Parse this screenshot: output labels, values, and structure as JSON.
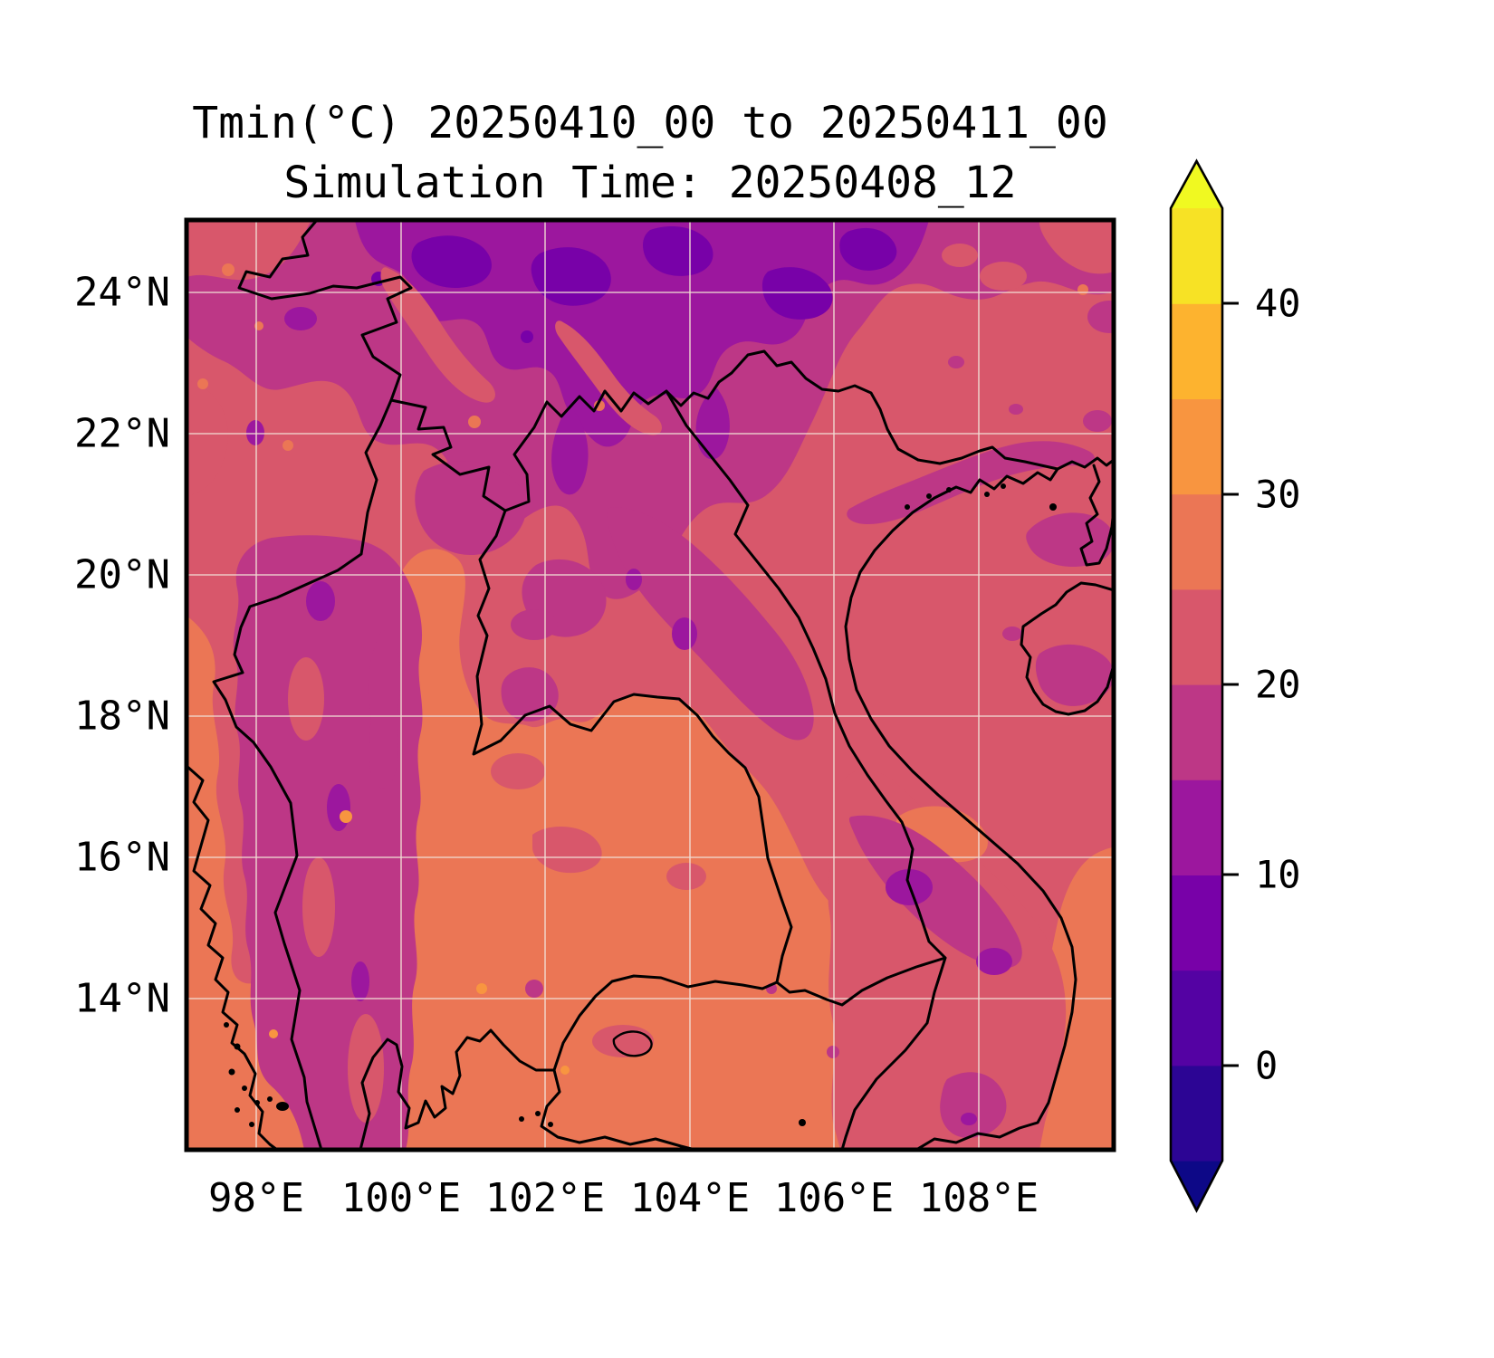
{
  "title": {
    "line1": "Tmin(°C) 20250410_00 to 20250411_00",
    "line2": "Simulation Time: 20250408_12"
  },
  "axes": {
    "x_tick_labels": [
      "98°E",
      "100°E",
      "102°E",
      "104°E",
      "106°E",
      "108°E"
    ],
    "y_tick_labels": [
      "24°N",
      "22°N",
      "20°N",
      "18°N",
      "16°N",
      "14°N"
    ]
  },
  "colorbar": {
    "tick_labels": [
      "40",
      "30",
      "20",
      "10",
      "0"
    ],
    "levels_c": [
      -5,
      0,
      5,
      10,
      15,
      20,
      25,
      30,
      35,
      40,
      45
    ],
    "segment_colors": [
      "#2c0594",
      "#5402a3",
      "#7801a8",
      "#9c179e",
      "#bd3786",
      "#d8576b",
      "#eb7655",
      "#f89540",
      "#fdb32f",
      "#f7e225"
    ],
    "under_color": "#0d0887",
    "over_color": "#f0f921"
  },
  "palette": {
    "base_pink": "#d8576b",
    "orange": "#eb7655",
    "light_orange": "#f89540",
    "magenta": "#bd3786",
    "purple": "#9c179e",
    "deep_purple": "#7801a8",
    "under_indigo": "#0d0887",
    "over_yellow": "#f0f921",
    "grid_line": "#f1ded4",
    "border_line": "#000000"
  },
  "chart_data": {
    "type": "heatmap",
    "subtype": "filled_contour_map",
    "title": "Tmin(°C) 20250410_00 to 20250411_00",
    "subtitle": "Simulation Time: 20250408_12",
    "variable": "Tmin",
    "units": "°C",
    "valid_period_start": "20250410_00",
    "valid_period_end": "20250411_00",
    "simulation_time": "20250408_12",
    "colormap": "plasma, discrete 5°C bins, extended both ends",
    "levels_c": [
      -5,
      0,
      5,
      10,
      15,
      20,
      25,
      30,
      35,
      40,
      45
    ],
    "colorbar_tick_values": [
      0,
      10,
      20,
      30,
      40
    ],
    "x_axis": {
      "label_type": "longitude",
      "tick_labels": [
        "98°E",
        "100°E",
        "102°E",
        "104°E",
        "106°E",
        "108°E"
      ],
      "approx_range_deg_e": [
        97.0,
        109.9
      ]
    },
    "y_axis": {
      "label_type": "latitude",
      "tick_labels": [
        "24°N",
        "22°N",
        "20°N",
        "18°N",
        "16°N",
        "14°N"
      ],
      "approx_range_deg_n": [
        11.9,
        25.0
      ]
    },
    "grid": true,
    "legend_position": "right colorbar",
    "regions_read_from_map": [
      {
        "region": "far north band (23.5-25°N, highlands of N Myanmar/N Vietnam/S China)",
        "tmin_c_bin": "10-15 with pockets 5-10"
      },
      {
        "region": "northern band (21-24°N)",
        "tmin_c_bin": "15-20 mixed with 20-25 streaks"
      },
      {
        "region": "central band, N Laos / N Vietnam / Gulf of Tonkin sea (18-22°N)",
        "tmin_c_bin": "20-25"
      },
      {
        "region": "Red River delta / Ha Long coastal strip",
        "tmin_c_bin": "15-20"
      },
      {
        "region": "western Myanmar-Thailand mountain range (12-20°N)",
        "tmin_c_bin": "15-25"
      },
      {
        "region": "Annamite range along Laos-Vietnam border",
        "tmin_c_bin": "15-20"
      },
      {
        "region": "central Thailand plains, Cambodia, lower Mekong, Gulf of Thailand (12-18°N)",
        "tmin_c_bin": "25-30 with speckles 30-35"
      },
      {
        "region": "Vietnam central highlands (13-15°N)",
        "tmin_c_bin": "15-20 with cores 10-15"
      },
      {
        "region": "Hainan island interior",
        "tmin_c_bin": "15-20"
      },
      {
        "region": "southern coastal sea (south of ~16°N)",
        "tmin_c_bin": "25-30"
      }
    ]
  }
}
